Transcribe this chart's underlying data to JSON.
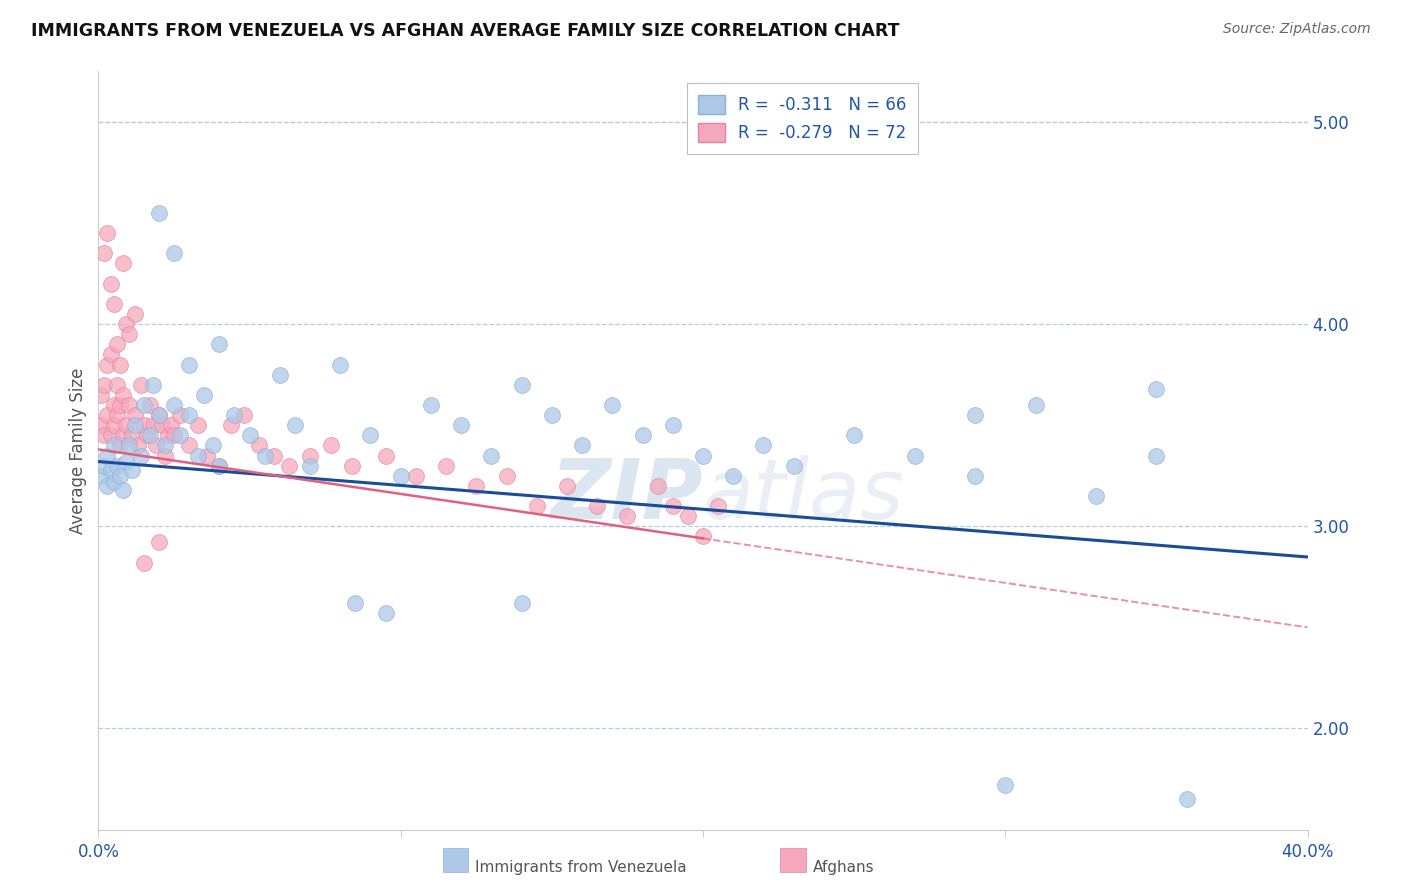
{
  "title": "IMMIGRANTS FROM VENEZUELA VS AFGHAN AVERAGE FAMILY SIZE CORRELATION CHART",
  "source": "Source: ZipAtlas.com",
  "ylabel": "Average Family Size",
  "watermark": "ZIPatlas",
  "xmin": 0.0,
  "xmax": 0.4,
  "ymin": 1.5,
  "ymax": 5.25,
  "yticks": [
    2.0,
    3.0,
    4.0,
    5.0
  ],
  "xticks": [
    0.0,
    0.1,
    0.2,
    0.3,
    0.4
  ],
  "series1_label": "Immigrants from Venezuela",
  "series1_R": -0.311,
  "series1_N": 66,
  "series1_color": "#adc8e8",
  "series1_edge_color": "#8ab0d8",
  "series1_line_color": "#1a4d99",
  "series2_label": "Afghans",
  "series2_R": -0.279,
  "series2_N": 72,
  "series2_color": "#f5a8bc",
  "series2_edge_color": "#e880a0",
  "series2_line_color": "#e06080",
  "blue_intercept": 3.32,
  "blue_slope": -1.18,
  "pink_intercept": 3.38,
  "pink_slope": -2.2,
  "blue_x": [
    0.001,
    0.002,
    0.003,
    0.003,
    0.004,
    0.005,
    0.005,
    0.006,
    0.007,
    0.008,
    0.009,
    0.01,
    0.011,
    0.012,
    0.014,
    0.015,
    0.017,
    0.018,
    0.02,
    0.022,
    0.025,
    0.027,
    0.03,
    0.033,
    0.035,
    0.038,
    0.04,
    0.045,
    0.05,
    0.055,
    0.06,
    0.065,
    0.07,
    0.08,
    0.09,
    0.1,
    0.11,
    0.12,
    0.13,
    0.14,
    0.15,
    0.16,
    0.17,
    0.18,
    0.19,
    0.2,
    0.21,
    0.22,
    0.23,
    0.25,
    0.27,
    0.29,
    0.31,
    0.33,
    0.35,
    0.36,
    0.02,
    0.025,
    0.03,
    0.04,
    0.085,
    0.095,
    0.14,
    0.29,
    0.35,
    0.3
  ],
  "blue_y": [
    3.25,
    3.3,
    3.2,
    3.35,
    3.28,
    3.4,
    3.22,
    3.3,
    3.25,
    3.18,
    3.32,
    3.4,
    3.28,
    3.5,
    3.35,
    3.6,
    3.45,
    3.7,
    3.55,
    3.4,
    3.6,
    3.45,
    3.55,
    3.35,
    3.65,
    3.4,
    3.3,
    3.55,
    3.45,
    3.35,
    3.75,
    3.5,
    3.3,
    3.8,
    3.45,
    3.25,
    3.6,
    3.5,
    3.35,
    3.7,
    3.55,
    3.4,
    3.6,
    3.45,
    3.5,
    3.35,
    3.25,
    3.4,
    3.3,
    3.45,
    3.35,
    3.25,
    3.6,
    3.15,
    3.35,
    1.65,
    4.55,
    4.35,
    3.8,
    3.9,
    2.62,
    2.57,
    2.62,
    3.55,
    3.68,
    1.72
  ],
  "pink_x": [
    0.001,
    0.001,
    0.002,
    0.002,
    0.003,
    0.003,
    0.004,
    0.004,
    0.005,
    0.005,
    0.006,
    0.006,
    0.007,
    0.007,
    0.008,
    0.008,
    0.009,
    0.01,
    0.011,
    0.012,
    0.013,
    0.014,
    0.015,
    0.016,
    0.017,
    0.018,
    0.019,
    0.02,
    0.021,
    0.022,
    0.023,
    0.024,
    0.025,
    0.027,
    0.03,
    0.033,
    0.036,
    0.04,
    0.044,
    0.048,
    0.053,
    0.058,
    0.063,
    0.07,
    0.077,
    0.084,
    0.095,
    0.105,
    0.115,
    0.125,
    0.135,
    0.145,
    0.155,
    0.165,
    0.175,
    0.185,
    0.19,
    0.195,
    0.2,
    0.205,
    0.002,
    0.003,
    0.004,
    0.005,
    0.006,
    0.007,
    0.008,
    0.009,
    0.01,
    0.012,
    0.015,
    0.02
  ],
  "pink_y": [
    3.5,
    3.65,
    3.45,
    3.7,
    3.55,
    3.8,
    3.45,
    3.85,
    3.5,
    3.6,
    3.55,
    3.7,
    3.4,
    3.6,
    3.45,
    3.65,
    3.5,
    3.6,
    3.45,
    3.55,
    3.4,
    3.7,
    3.5,
    3.45,
    3.6,
    3.5,
    3.4,
    3.55,
    3.5,
    3.35,
    3.45,
    3.5,
    3.45,
    3.55,
    3.4,
    3.5,
    3.35,
    3.3,
    3.5,
    3.55,
    3.4,
    3.35,
    3.3,
    3.35,
    3.4,
    3.3,
    3.35,
    3.25,
    3.3,
    3.2,
    3.25,
    3.1,
    3.2,
    3.1,
    3.05,
    3.2,
    3.1,
    3.05,
    2.95,
    3.1,
    4.35,
    4.45,
    4.2,
    4.1,
    3.9,
    3.8,
    4.3,
    4.0,
    3.95,
    4.05,
    2.82,
    2.92
  ]
}
